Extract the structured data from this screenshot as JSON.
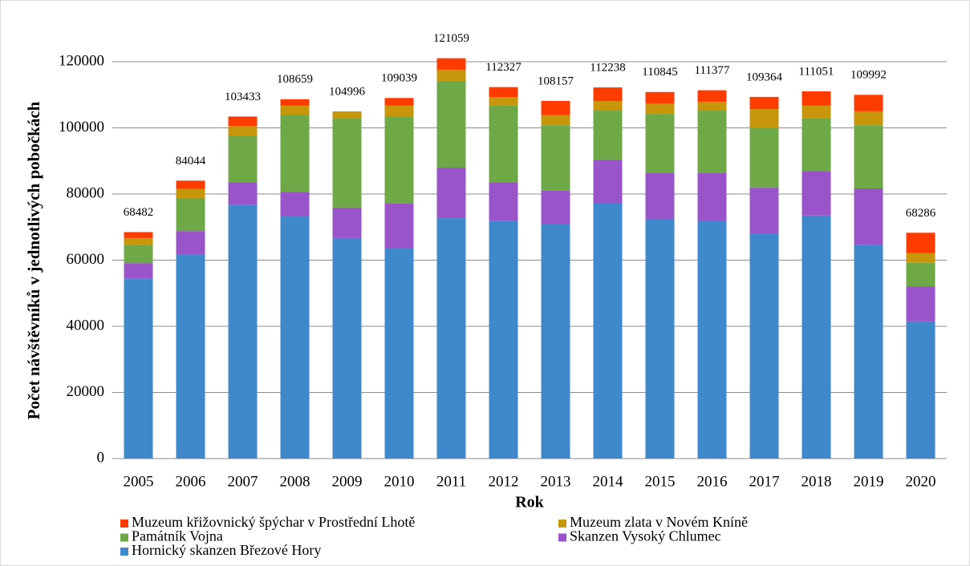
{
  "chart_data": {
    "type": "stacked_bar",
    "x_label": "Rok",
    "y_label": "Počet návštěvníků v jednotlivých pobočkách",
    "categories": [
      "2005",
      "2006",
      "2007",
      "2008",
      "2009",
      "2010",
      "2011",
      "2012",
      "2013",
      "2014",
      "2015",
      "2016",
      "2017",
      "2018",
      "2019",
      "2020"
    ],
    "series": [
      {
        "name": "Hornický skanzen Březové Hory",
        "color": "#3f88cc",
        "values": [
          54500,
          61800,
          76800,
          73200,
          66700,
          63500,
          72700,
          71800,
          70800,
          77100,
          72500,
          72000,
          67900,
          73500,
          64700,
          41500
        ]
      },
      {
        "name": "Skanzen Vysoký Chlumec",
        "color": "#9954c9",
        "values": [
          4600,
          7000,
          6800,
          7500,
          9200,
          13600,
          15300,
          11800,
          10200,
          13300,
          13800,
          14300,
          14000,
          13500,
          17000,
          10600
        ]
      },
      {
        "name": "Památník Vojna",
        "color": "#6fa846",
        "values": [
          5400,
          10000,
          14100,
          23300,
          27100,
          26400,
          26200,
          23100,
          19800,
          14800,
          17900,
          18900,
          18000,
          15800,
          19100,
          7100
        ]
      },
      {
        "name": "Muzeum zlata v Novém Kníně",
        "color": "#c8960a",
        "values": [
          2200,
          2700,
          2900,
          2700,
          1996,
          3200,
          3400,
          2600,
          3000,
          2900,
          3200,
          2700,
          5800,
          3900,
          4200,
          2900
        ]
      },
      {
        "name": "Muzeum křižovnický špýchar v Prostřední Lhotě",
        "color": "#ff3c00",
        "values": [
          1782,
          2544,
          2833,
          1959,
          0,
          2339,
          3459,
          3027,
          4357,
          4138,
          3445,
          3477,
          3664,
          4351,
          4992,
          6186
        ]
      }
    ],
    "totals": [
      68482,
      84044,
      103433,
      108659,
      104996,
      109039,
      121059,
      112327,
      108157,
      112238,
      110845,
      111377,
      109364,
      111051,
      109992,
      68286
    ],
    "ylim": [
      0,
      120000
    ],
    "yticks": [
      0,
      20000,
      40000,
      60000,
      80000,
      100000,
      120000
    ],
    "grid": true
  }
}
